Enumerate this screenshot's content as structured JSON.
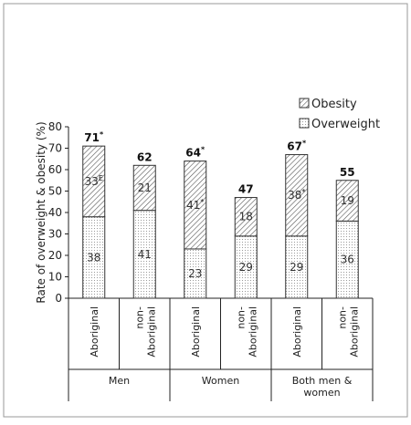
{
  "chart_data": {
    "type": "bar",
    "stacked": true,
    "ylabel": "Rate of overweight & obesity (%)",
    "ylim": [
      0,
      80
    ],
    "yticks": [
      0,
      10,
      20,
      30,
      40,
      50,
      60,
      70,
      80
    ],
    "categories": [
      "Aboriginal",
      "non-Aboriginal",
      "Aboriginal",
      "non-Aboriginal",
      "Aboriginal",
      "non-Aboriginal"
    ],
    "groups": [
      "Men",
      "Women",
      "Both men & women"
    ],
    "series": [
      {
        "name": "Overweight",
        "values": [
          38,
          41,
          23,
          29,
          29,
          36
        ],
        "labels": [
          "38",
          "41",
          "23",
          "29",
          "29",
          "36"
        ]
      },
      {
        "name": "Obesity",
        "values": [
          33,
          21,
          41,
          18,
          38,
          19
        ],
        "labels": [
          "33",
          "21",
          "41",
          "18",
          "38",
          "19"
        ],
        "marks": [
          "E",
          "",
          "*",
          "",
          "*",
          ""
        ]
      }
    ],
    "totals": [
      "71",
      "62",
      "64",
      "47",
      "67",
      "55"
    ],
    "total_marks": [
      "*",
      "",
      "*",
      "",
      "*",
      ""
    ],
    "legend": [
      "Obesity",
      "Overweight"
    ],
    "legend_position": "top-right",
    "grid": false
  }
}
